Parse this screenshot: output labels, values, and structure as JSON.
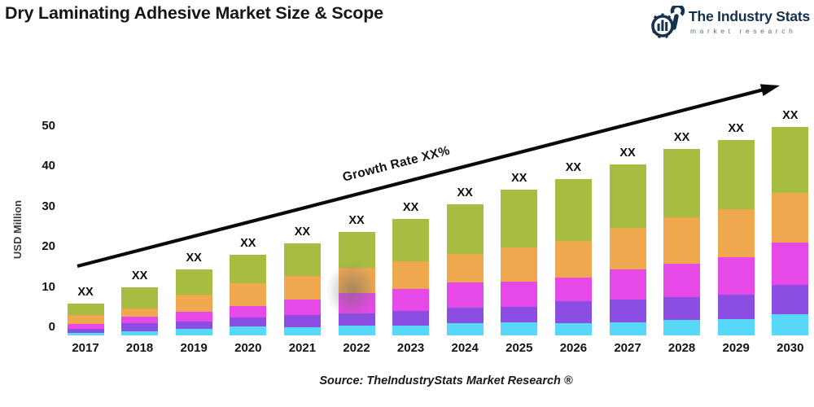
{
  "header": {
    "title": "Dry Laminating Adhesive Market Size & Scope",
    "logo": {
      "name": "The Industry Stats",
      "tagline": "market research",
      "icon": "gear-wrench-bars-icon",
      "color": "#16324f"
    }
  },
  "chart_data": {
    "type": "bar",
    "stacked": true,
    "title": "Dry Laminating Adhesive Market Size & Scope",
    "ylabel": "USD Million",
    "xlabel": "",
    "categories": [
      "2017",
      "2018",
      "2019",
      "2020",
      "2021",
      "2022",
      "2023",
      "2024",
      "2025",
      "2026",
      "2027",
      "2028",
      "2029",
      "2030"
    ],
    "series": [
      {
        "name": "segment-1-cyan",
        "color": "#56d9f8",
        "values": [
          0.6,
          1.0,
          1.6,
          2.2,
          2.0,
          2.4,
          2.4,
          3.0,
          3.2,
          3.0,
          3.2,
          3.8,
          4.0,
          5.3
        ]
      },
      {
        "name": "segment-2-purple",
        "color": "#8c4ee2",
        "values": [
          1.0,
          2.0,
          1.8,
          2.2,
          3.0,
          3.0,
          3.6,
          3.8,
          3.8,
          5.5,
          5.7,
          5.7,
          6.1,
          7.3
        ]
      },
      {
        "name": "segment-3-magenta",
        "color": "#e748e8",
        "values": [
          1.2,
          1.6,
          2.4,
          2.8,
          4.0,
          5.1,
          5.5,
          6.3,
          6.3,
          5.9,
          7.5,
          8.3,
          9.3,
          10.5
        ]
      },
      {
        "name": "segment-4-orange",
        "color": "#f0a84e",
        "values": [
          2.2,
          2.0,
          4.3,
          5.7,
          5.7,
          6.3,
          6.9,
          7.1,
          8.5,
          9.1,
          10.3,
          11.5,
          11.9,
          12.3
        ]
      },
      {
        "name": "segment-5-green",
        "color": "#a6bd42",
        "values": [
          2.8,
          5.3,
          6.3,
          7.1,
          8.1,
          8.9,
          10.5,
          12.3,
          14.4,
          15.4,
          15.8,
          17.0,
          17.2,
          16.4
        ]
      }
    ],
    "totals_approx": [
      5.9,
      9.9,
      14.4,
      18.0,
      20.9,
      23.7,
      26.9,
      30.6,
      34.2,
      36.9,
      40.5,
      44.4,
      46.6,
      49.8
    ],
    "bar_value_label": "XX",
    "growth_annotation": "Growth Rate XX%",
    "y_ticks": [
      0,
      10,
      20,
      30,
      40,
      50
    ],
    "ylim": [
      0,
      50
    ],
    "baseline_offset": -2,
    "gridlines": false,
    "legend": "none",
    "arrow_color": "#0a0a0a"
  },
  "footer": {
    "source": "Source: TheIndustryStats Market Research ®"
  }
}
